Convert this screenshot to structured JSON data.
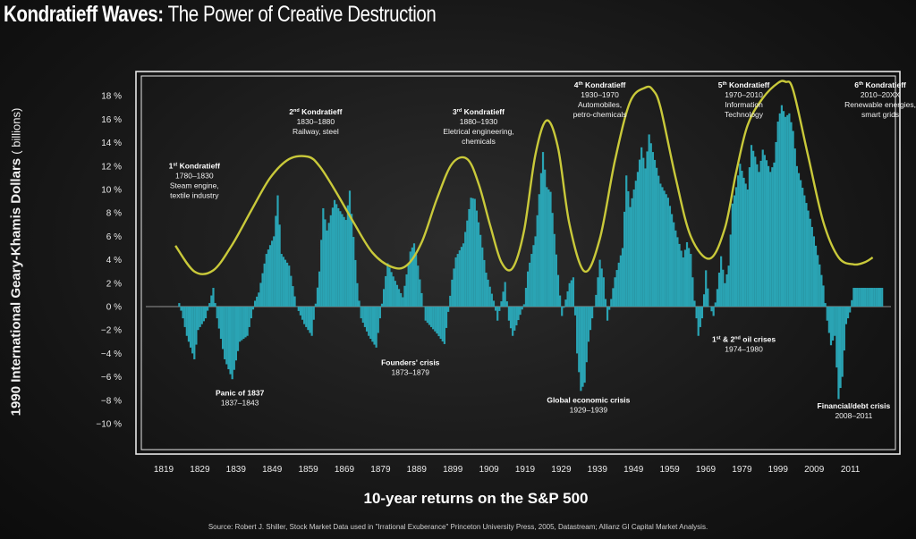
{
  "header": {
    "title_bold": "Kondratieff Waves:",
    "title_rest": "The Power of Creative Destruction"
  },
  "axes": {
    "ylabel": "1990 International Geary-Khamis Dollars",
    "ylabel_unit": "( billions)",
    "xtitle": "10-year returns on the S&P 500"
  },
  "source": "Source: Robert J. Shiller, Stock Market Data used in \"Irrational Exuberance\" Princeton University Press, 2005, Datastream;  Allianz GI Capital Market Analysis.",
  "colors": {
    "bars": "#2aa4b4",
    "wave": "#c9c93a",
    "frame": "#e8e8e8",
    "zero_line": "#bdbdbd"
  },
  "chart_data": {
    "type": "bar",
    "title": "Kondratieff Waves: The Power of Creative Destruction",
    "xlabel": "10-year returns on the S&P 500",
    "ylabel": "1990 International Geary-Khamis Dollars ( billions)",
    "xlim": [
      1815,
      2014
    ],
    "ylim": [
      -12,
      20
    ],
    "x_ticks": [
      "1819",
      "1829",
      "1839",
      "1849",
      "1859",
      "1869",
      "1879",
      "1889",
      "1899",
      "1909",
      "1919",
      "1929",
      "1939",
      "1949",
      "1959",
      "1969",
      "1979",
      "1999",
      "2009",
      "2011"
    ],
    "y_ticks": [
      "18 %",
      "16 %",
      "14 %",
      "12 %",
      "10 %",
      "8 %",
      "6 %",
      "4 %",
      "2 %",
      "0 %",
      "−2 %",
      "−4 %",
      "−6 %",
      "−8 %",
      "−10 %"
    ],
    "grid": false,
    "bar_years_range": [
      1825,
      2010.5
    ],
    "bar_anchor_values": [
      [
        1825,
        0.3
      ],
      [
        1826,
        -1
      ],
      [
        1827,
        -2.5
      ],
      [
        1828,
        -3.5
      ],
      [
        1829,
        -4.5
      ],
      [
        1830,
        -2
      ],
      [
        1832,
        -1
      ],
      [
        1834,
        1.6
      ],
      [
        1835,
        -1
      ],
      [
        1837,
        -4.5
      ],
      [
        1839,
        -6.2
      ],
      [
        1841,
        -3
      ],
      [
        1843,
        -2.5
      ],
      [
        1845,
        0.5
      ],
      [
        1846,
        1.2
      ],
      [
        1848,
        4.5
      ],
      [
        1850,
        6
      ],
      [
        1851,
        9.5
      ],
      [
        1852,
        4.5
      ],
      [
        1854,
        3.5
      ],
      [
        1856,
        0
      ],
      [
        1858,
        -1.5
      ],
      [
        1860,
        -2.5
      ],
      [
        1862,
        3
      ],
      [
        1863,
        8.4
      ],
      [
        1864,
        6.5
      ],
      [
        1866,
        9.1
      ],
      [
        1867,
        8.4
      ],
      [
        1869,
        7.4
      ],
      [
        1870,
        9.9
      ],
      [
        1872,
        2
      ],
      [
        1873,
        -1
      ],
      [
        1875,
        -2.5
      ],
      [
        1877,
        -3.5
      ],
      [
        1879,
        1.5
      ],
      [
        1880,
        3.7
      ],
      [
        1882,
        2.2
      ],
      [
        1884,
        0.8
      ],
      [
        1886,
        4.7
      ],
      [
        1887,
        5.4
      ],
      [
        1888,
        3.5
      ],
      [
        1890,
        -1.2
      ],
      [
        1893,
        -2.3
      ],
      [
        1895,
        -3.2
      ],
      [
        1897,
        2.3
      ],
      [
        1898,
        4.2
      ],
      [
        1900,
        5.4
      ],
      [
        1902,
        9.3
      ],
      [
        1903,
        9.2
      ],
      [
        1904,
        7.2
      ],
      [
        1906,
        2.9
      ],
      [
        1908,
        0.5
      ],
      [
        1909,
        -1.2
      ],
      [
        1911,
        2.1
      ],
      [
        1912,
        -1.2
      ],
      [
        1913,
        -2.5
      ],
      [
        1916,
        0.2
      ],
      [
        1917,
        3
      ],
      [
        1919,
        6
      ],
      [
        1921,
        13.2
      ],
      [
        1922,
        10.2
      ],
      [
        1923,
        9.8
      ],
      [
        1924,
        6.2
      ],
      [
        1926,
        -0.8
      ],
      [
        1928,
        2
      ],
      [
        1929,
        2.5
      ],
      [
        1930,
        -4
      ],
      [
        1931,
        -7.2
      ],
      [
        1932,
        -6.5
      ],
      [
        1933,
        -3
      ],
      [
        1935,
        1
      ],
      [
        1936,
        4
      ],
      [
        1937,
        2.5
      ],
      [
        1938,
        -1.2
      ],
      [
        1940,
        2.5
      ],
      [
        1942,
        5
      ],
      [
        1943,
        11.2
      ],
      [
        1944,
        8.5
      ],
      [
        1946,
        11.5
      ],
      [
        1947,
        13.6
      ],
      [
        1948,
        11.8
      ],
      [
        1949,
        14.7
      ],
      [
        1950,
        13.2
      ],
      [
        1952,
        10.5
      ],
      [
        1954,
        9.3
      ],
      [
        1956,
        6.5
      ],
      [
        1958,
        4.2
      ],
      [
        1959,
        5.5
      ],
      [
        1960,
        4.5
      ],
      [
        1961,
        0.5
      ],
      [
        1962,
        -2.5
      ],
      [
        1963,
        -1
      ],
      [
        1964,
        3.1
      ],
      [
        1965,
        0
      ],
      [
        1966,
        -0.8
      ],
      [
        1967,
        1.5
      ],
      [
        1968,
        4.3
      ],
      [
        1969,
        2
      ],
      [
        1970,
        3.5
      ],
      [
        1971,
        8.8
      ],
      [
        1972,
        10.2
      ],
      [
        1973,
        12.2
      ],
      [
        1974,
        11
      ],
      [
        1975,
        10
      ],
      [
        1976,
        13.8
      ],
      [
        1977,
        12.8
      ],
      [
        1978,
        11.5
      ],
      [
        1979,
        13.4
      ],
      [
        1980,
        12.5
      ],
      [
        1981,
        11.5
      ],
      [
        1982,
        12.3
      ],
      [
        1983,
        15.8
      ],
      [
        1984,
        17.2
      ],
      [
        1985,
        16.2
      ],
      [
        1986,
        16.5
      ],
      [
        1987,
        15
      ],
      [
        1988,
        12
      ],
      [
        1989,
        10.8
      ],
      [
        1990,
        9.5
      ],
      [
        1991,
        8.2
      ],
      [
        1992,
        6.8
      ],
      [
        1993,
        5.2
      ],
      [
        1994,
        3.6
      ],
      [
        1995,
        1.8
      ],
      [
        1996,
        -1.2
      ],
      [
        1997,
        -3.3
      ],
      [
        1998,
        -2.5
      ],
      [
        1999,
        -7.9
      ],
      [
        2000,
        -6
      ],
      [
        2001,
        -1.5
      ],
      [
        2002,
        -0.5
      ],
      [
        2003,
        1.6
      ],
      [
        2010.5,
        1.6
      ]
    ],
    "wave": {
      "name": "Kondratieff cycle",
      "x": [
        1824,
        1829,
        1834,
        1839,
        1844,
        1849,
        1854,
        1859,
        1862,
        1866,
        1871,
        1876,
        1881,
        1885,
        1889,
        1893,
        1897,
        1901,
        1904,
        1907,
        1910,
        1913,
        1916,
        1919,
        1922,
        1925,
        1928,
        1932,
        1936,
        1940,
        1944,
        1948,
        1950,
        1952,
        1956,
        1960,
        1965,
        1969,
        1972,
        1975,
        1979,
        1983,
        1985,
        1987,
        1991,
        1995,
        1999,
        2003,
        2006,
        2008
      ],
      "y": [
        5.2,
        3.0,
        3.1,
        5.3,
        8.2,
        11.0,
        12.6,
        12.8,
        12.0,
        10.0,
        7.2,
        4.6,
        3.4,
        3.5,
        5.5,
        9.2,
        12.2,
        12.6,
        10.5,
        7.0,
        3.8,
        3.3,
        6.5,
        13.0,
        15.9,
        13.5,
        7.0,
        3.0,
        5.8,
        12.5,
        17.5,
        18.7,
        18.5,
        17.0,
        11.0,
        6.0,
        4.1,
        6.7,
        11.5,
        15.5,
        17.8,
        19.1,
        19.2,
        18.5,
        12.8,
        7.2,
        4.2,
        3.6,
        3.8,
        4.2
      ]
    },
    "annotations": [
      {
        "x": 1829,
        "y": 11.8,
        "title": "1",
        "sup": "st",
        "title_rest": " Kondratieff",
        "lines": [
          "1780–1830",
          "Steam engine,",
          "textile industry"
        ]
      },
      {
        "x": 1861,
        "y": 16.4,
        "title": "2",
        "sup": "nd",
        "title_rest": " Kondratieff",
        "lines": [
          "1830–1880",
          "Railway, steel"
        ]
      },
      {
        "x": 1904,
        "y": 16.4,
        "title": "3",
        "sup": "rd",
        "title_rest": " Kondratieff",
        "lines": [
          "1880–1930",
          "Eletrical engineering,",
          "chemicals"
        ]
      },
      {
        "x": 1936,
        "y": 18.7,
        "title": "4",
        "sup": "th",
        "title_rest": " Kondratieff",
        "lines": [
          "1930–1970",
          "Automobiles,",
          "petro-chemicals"
        ]
      },
      {
        "x": 1974,
        "y": 18.7,
        "title": "5",
        "sup": "th",
        "title_rest": " Kondratieff",
        "lines": [
          "1970–2010",
          "Information",
          "Technology"
        ]
      },
      {
        "x": 2010,
        "y": 18.7,
        "title": "6",
        "sup": "th",
        "title_rest": " Kondratieff",
        "lines": [
          "2010–20XX",
          "Renewable energies,",
          "smart grids"
        ]
      },
      {
        "x": 1841,
        "y": -7.6,
        "title": "Panic of 1837",
        "lines": [
          "1837–1843"
        ]
      },
      {
        "x": 1886,
        "y": -5.0,
        "title": "Founders' crisis",
        "lines": [
          "1873–1879"
        ]
      },
      {
        "x": 1933,
        "y": -8.2,
        "title": "Global economic crisis",
        "lines": [
          "1929–1939"
        ]
      },
      {
        "x": 1974,
        "y": -3.0,
        "title": "1",
        "sup": "st",
        "title_rest": " & 2",
        "sup2": "nd",
        "title_rest2": " oil crises",
        "lines": [
          "1974–1980"
        ]
      },
      {
        "x": 2003,
        "y": -8.7,
        "title": "Financial/debt crisis",
        "lines": [
          "2008–2011"
        ]
      }
    ]
  }
}
